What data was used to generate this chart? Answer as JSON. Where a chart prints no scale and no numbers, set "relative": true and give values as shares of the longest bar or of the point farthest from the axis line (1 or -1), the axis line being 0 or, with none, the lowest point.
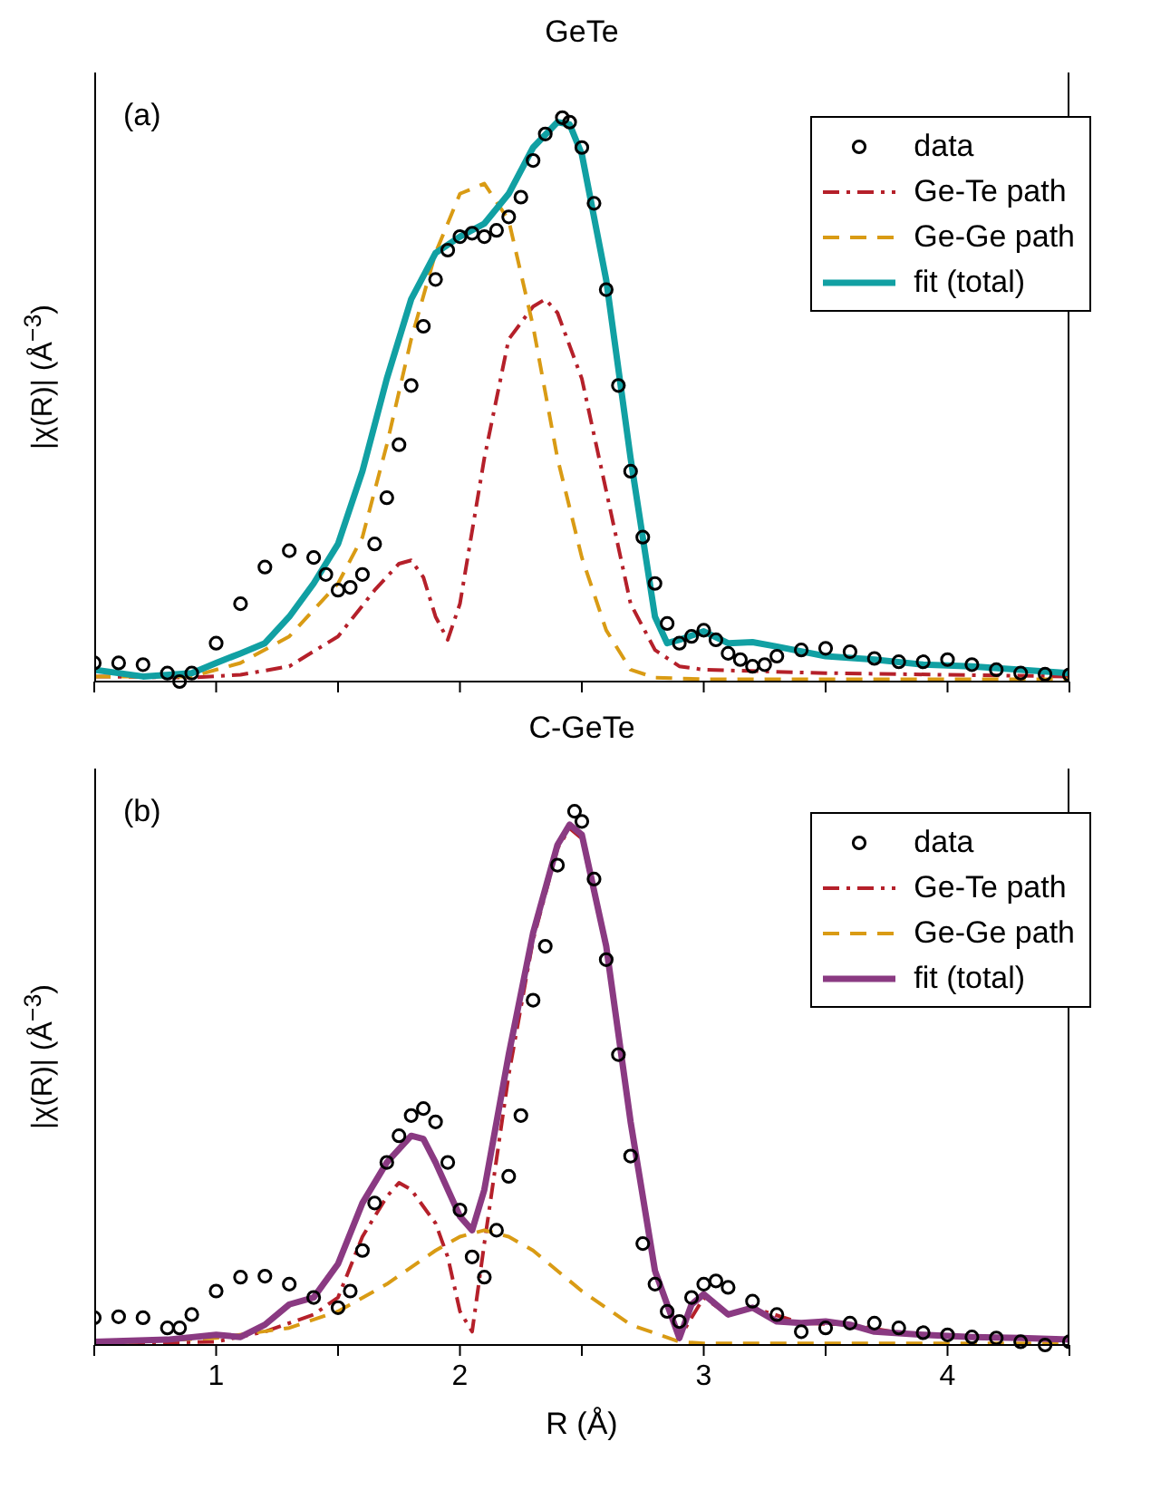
{
  "chart_data": [
    {
      "type": "line",
      "title": "GeTe",
      "ylabel": "|χ(R)| (Å$^{−3}$)",
      "annotations": [
        "(a)"
      ],
      "relative": true,
      "xlim": [
        0.5,
        4.5
      ],
      "xticks": [
        {
          "value": 0.5,
          "label": null
        },
        {
          "value": 1,
          "label": null
        },
        {
          "value": 1.5,
          "label": null
        },
        {
          "value": 2,
          "label": null
        },
        {
          "value": 2.5,
          "label": null
        },
        {
          "value": 3,
          "label": null
        },
        {
          "value": 3.5,
          "label": null
        },
        {
          "value": 4,
          "label": null
        },
        {
          "value": 4.5,
          "label": null
        }
      ],
      "tick_labels": false,
      "legend": "top right",
      "grid": false,
      "series": [
        {
          "name": "data",
          "type": "scatter",
          "marker": "circle",
          "color": "#000000",
          "x": [
            0.5,
            0.6,
            0.7,
            0.8,
            0.85,
            0.9,
            1.0,
            1.1,
            1.2,
            1.3,
            1.4,
            1.45,
            1.5,
            1.55,
            1.6,
            1.65,
            1.7,
            1.75,
            1.8,
            1.85,
            1.9,
            1.95,
            2.0,
            2.05,
            2.1,
            2.15,
            2.2,
            2.25,
            2.3,
            2.35,
            2.42,
            2.45,
            2.5,
            2.55,
            2.6,
            2.65,
            2.7,
            2.75,
            2.8,
            2.85,
            2.9,
            2.95,
            3.0,
            3.05,
            3.1,
            3.15,
            3.2,
            3.25,
            3.3,
            3.4,
            3.5,
            3.6,
            3.7,
            3.8,
            3.9,
            4.0,
            4.1,
            4.2,
            4.3,
            4.4,
            4.5
          ],
          "values": [
            0.033,
            0.033,
            0.03,
            0.015,
            0,
            0.015,
            0.068,
            0.138,
            0.203,
            0.232,
            0.22,
            0.19,
            0.162,
            0.167,
            0.19,
            0.244,
            0.326,
            0.42,
            0.525,
            0.63,
            0.713,
            0.765,
            0.789,
            0.795,
            0.789,
            0.8,
            0.824,
            0.859,
            0.924,
            0.971,
            1,
            0.992,
            0.947,
            0.848,
            0.695,
            0.525,
            0.373,
            0.256,
            0.174,
            0.103,
            0.068,
            0.08,
            0.091,
            0.074,
            0.05,
            0.039,
            0.027,
            0.03,
            0.045,
            0.056,
            0.059,
            0.053,
            0.041,
            0.035,
            0.035,
            0.039,
            0.03,
            0.021,
            0.015,
            0.013,
            0.012
          ]
        },
        {
          "name": "Ge-Te path",
          "type": "line",
          "line_style": "dashdot",
          "color": "#b5202a",
          "x": [
            0.5,
            0.9,
            1.1,
            1.3,
            1.5,
            1.65,
            1.75,
            1.8,
            1.85,
            1.9,
            1.95,
            2.0,
            2.1,
            2.2,
            2.3,
            2.35,
            2.4,
            2.5,
            2.6,
            2.7,
            2.8,
            2.9,
            3.0,
            3.5,
            4.0,
            4.5
          ],
          "values": [
            0.009,
            0.007,
            0.012,
            0.027,
            0.08,
            0.162,
            0.209,
            0.215,
            0.185,
            0.115,
            0.074,
            0.138,
            0.396,
            0.607,
            0.665,
            0.678,
            0.654,
            0.537,
            0.338,
            0.138,
            0.056,
            0.027,
            0.021,
            0.015,
            0.012,
            0.009
          ]
        },
        {
          "name": "Ge-Ge path",
          "type": "line",
          "line_style": "dashed",
          "color": "#d99b14",
          "x": [
            0.5,
            0.9,
            1.1,
            1.3,
            1.5,
            1.6,
            1.7,
            1.8,
            1.9,
            2.0,
            2.1,
            2.2,
            2.3,
            2.4,
            2.5,
            2.6,
            2.7,
            2.8,
            3.0,
            4.5
          ],
          "values": [
            0.009,
            0.009,
            0.033,
            0.08,
            0.174,
            0.256,
            0.42,
            0.607,
            0.76,
            0.865,
            0.883,
            0.818,
            0.63,
            0.396,
            0.22,
            0.091,
            0.021,
            0.007,
            0.004,
            0.004
          ]
        },
        {
          "name": "fit (total)",
          "type": "line",
          "line_style": "solid",
          "color": "#11a0a3",
          "x": [
            0.5,
            0.7,
            0.9,
            1.0,
            1.1,
            1.2,
            1.3,
            1.4,
            1.5,
            1.6,
            1.7,
            1.8,
            1.9,
            2.0,
            2.1,
            2.2,
            2.3,
            2.4,
            2.45,
            2.5,
            2.6,
            2.7,
            2.8,
            2.85,
            2.9,
            3.0,
            3.1,
            3.2,
            3.3,
            3.5,
            3.7,
            3.9,
            4.1,
            4.3,
            4.5
          ],
          "values": [
            0.021,
            0.009,
            0.015,
            0.033,
            0.05,
            0.068,
            0.115,
            0.174,
            0.244,
            0.373,
            0.537,
            0.678,
            0.76,
            0.789,
            0.812,
            0.865,
            0.947,
            0.992,
            0.988,
            0.935,
            0.712,
            0.396,
            0.115,
            0.068,
            0.074,
            0.089,
            0.068,
            0.07,
            0.062,
            0.045,
            0.039,
            0.03,
            0.027,
            0.021,
            0.015
          ]
        }
      ]
    },
    {
      "type": "line",
      "title": "C-GeTe",
      "xlabel": "R (Å)",
      "ylabel": "|χ(R)| (Å$^{−3}$)",
      "annotations": [
        "(b)"
      ],
      "relative": true,
      "xlim": [
        0.5,
        4.5
      ],
      "xticks": [
        {
          "value": 0.5,
          "label": null
        },
        {
          "value": 1,
          "label": "1"
        },
        {
          "value": 1.5,
          "label": null
        },
        {
          "value": 2,
          "label": "2"
        },
        {
          "value": 2.5,
          "label": null
        },
        {
          "value": 3,
          "label": "3"
        },
        {
          "value": 3.5,
          "label": null
        },
        {
          "value": 4,
          "label": "4"
        },
        {
          "value": 4.5,
          "label": null
        }
      ],
      "tick_labels": "x",
      "legend": "top right",
      "grid": false,
      "series": [
        {
          "name": "data",
          "type": "scatter",
          "marker": "circle",
          "color": "#000000",
          "x": [
            0.5,
            0.6,
            0.7,
            0.8,
            0.85,
            0.9,
            1.0,
            1.1,
            1.2,
            1.3,
            1.4,
            1.5,
            1.55,
            1.6,
            1.65,
            1.7,
            1.75,
            1.8,
            1.85,
            1.9,
            1.95,
            2.0,
            2.05,
            2.1,
            2.15,
            2.2,
            2.25,
            2.3,
            2.35,
            2.4,
            2.47,
            2.5,
            2.55,
            2.6,
            2.65,
            2.7,
            2.75,
            2.8,
            2.85,
            2.9,
            2.95,
            3.0,
            3.05,
            3.1,
            3.2,
            3.3,
            3.4,
            3.5,
            3.6,
            3.7,
            3.8,
            3.9,
            4.0,
            4.1,
            4.2,
            4.3,
            4.4,
            4.5
          ],
          "values": [
            0.051,
            0.053,
            0.051,
            0.032,
            0.032,
            0.057,
            0.101,
            0.127,
            0.129,
            0.114,
            0.089,
            0.07,
            0.101,
            0.177,
            0.266,
            0.342,
            0.392,
            0.43,
            0.443,
            0.418,
            0.342,
            0.253,
            0.165,
            0.127,
            0.215,
            0.316,
            0.43,
            0.646,
            0.747,
            0.899,
            1,
            0.981,
            0.873,
            0.722,
            0.544,
            0.354,
            0.19,
            0.114,
            0.063,
            0.044,
            0.089,
            0.114,
            0.12,
            0.108,
            0.082,
            0.057,
            0.025,
            0.032,
            0.041,
            0.041,
            0.032,
            0.023,
            0.019,
            0.015,
            0.013,
            0.006,
            0,
            0.006
          ]
        },
        {
          "name": "Ge-Te path",
          "type": "line",
          "line_style": "dashdot",
          "color": "#b5202a",
          "x": [
            0.5,
            1.0,
            1.2,
            1.4,
            1.5,
            1.6,
            1.7,
            1.75,
            1.8,
            1.9,
            1.95,
            2.0,
            2.05,
            2.1,
            2.2,
            2.3,
            2.4,
            2.45,
            2.5,
            2.6,
            2.7,
            2.8,
            2.9,
            3.0,
            3.1,
            3.2,
            3.4,
            3.6,
            3.8,
            4.0,
            4.5
          ],
          "values": [
            0.003,
            0.006,
            0.025,
            0.057,
            0.089,
            0.203,
            0.278,
            0.304,
            0.291,
            0.228,
            0.165,
            0.063,
            0.025,
            0.19,
            0.506,
            0.759,
            0.93,
            0.968,
            0.949,
            0.741,
            0.411,
            0.133,
            0.013,
            0.089,
            0.057,
            0.07,
            0.041,
            0.038,
            0.023,
            0.018,
            0.008
          ]
        },
        {
          "name": "Ge-Ge path",
          "type": "line",
          "line_style": "dashed",
          "color": "#d99b14",
          "x": [
            0.5,
            1.0,
            1.3,
            1.5,
            1.7,
            1.9,
            2.0,
            2.1,
            2.2,
            2.3,
            2.5,
            2.7,
            2.9,
            3.0,
            4.5
          ],
          "values": [
            0.003,
            0.013,
            0.032,
            0.063,
            0.114,
            0.177,
            0.203,
            0.215,
            0.203,
            0.177,
            0.101,
            0.038,
            0.006,
            0.003,
            0.003
          ]
        },
        {
          "name": "fit (total)",
          "type": "line",
          "line_style": "solid",
          "color": "#8a3a82",
          "x": [
            0.5,
            0.8,
            1.0,
            1.1,
            1.2,
            1.3,
            1.4,
            1.5,
            1.6,
            1.7,
            1.8,
            1.85,
            1.9,
            2.0,
            2.05,
            2.1,
            2.2,
            2.3,
            2.4,
            2.45,
            2.5,
            2.6,
            2.7,
            2.8,
            2.9,
            2.95,
            3.0,
            3.1,
            3.2,
            3.3,
            3.4,
            3.5,
            3.6,
            3.7,
            3.9,
            4.1,
            4.3,
            4.5
          ],
          "values": [
            0.006,
            0.01,
            0.019,
            0.015,
            0.038,
            0.076,
            0.089,
            0.152,
            0.266,
            0.342,
            0.392,
            0.386,
            0.342,
            0.241,
            0.215,
            0.291,
            0.544,
            0.772,
            0.937,
            0.975,
            0.956,
            0.747,
            0.418,
            0.139,
            0.013,
            0.076,
            0.095,
            0.057,
            0.07,
            0.044,
            0.041,
            0.044,
            0.038,
            0.025,
            0.019,
            0.015,
            0.013,
            0.01
          ]
        }
      ]
    }
  ]
}
